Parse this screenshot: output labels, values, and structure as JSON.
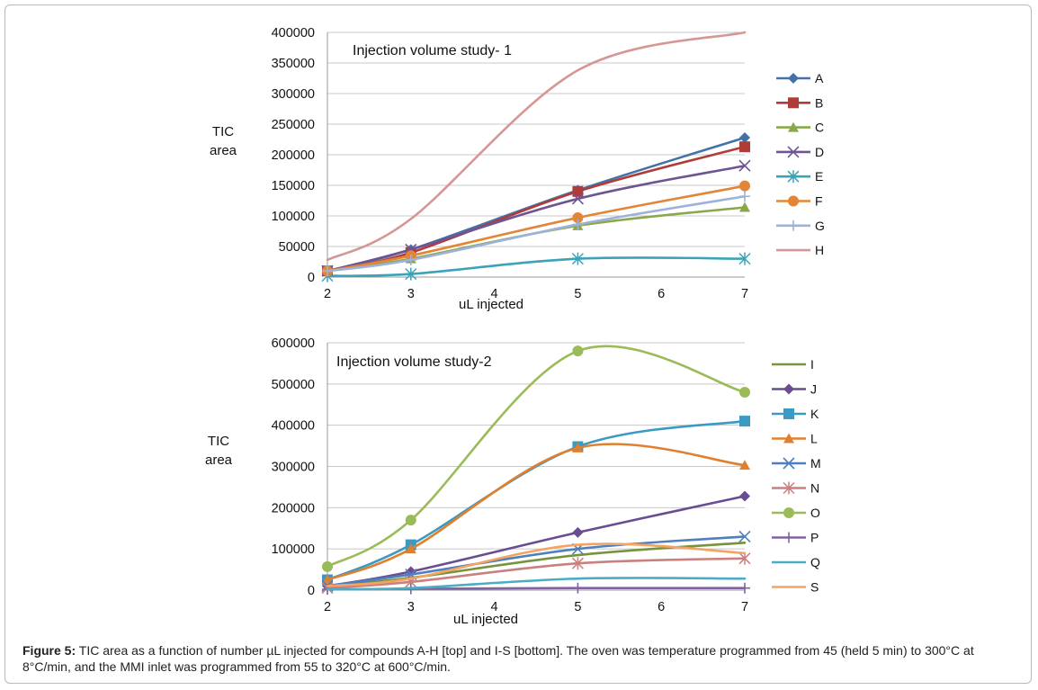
{
  "caption": {
    "label": "Figure 5:",
    "text": "TIC area as a function of number µL injected for compounds A-H [top] and I-S [bottom]. The oven was temperature programmed from 45 (held 5 min) to 300°C at 8°C/min, and the MMI inlet was programmed from 55 to 320°C at 600°C/min."
  },
  "chart_data": [
    {
      "type": "line",
      "title": "Injection volume  study- 1",
      "xlabel": "uL injected",
      "ylabel": "TIC area",
      "xlim": [
        2,
        7
      ],
      "ylim": [
        0,
        400000
      ],
      "xticks": [
        "2",
        "3",
        "4",
        "5",
        "6",
        "7"
      ],
      "yticks": [
        "0",
        "50000",
        "100000",
        "150000",
        "200000",
        "250000",
        "300000",
        "350000",
        "400000"
      ],
      "grid": "horizontal",
      "legend_position": "right",
      "x": [
        2,
        3,
        5,
        7
      ],
      "series": [
        {
          "name": "A",
          "marker": "diamond",
          "color": "#4472a8",
          "values": [
            10000,
            45000,
            142000,
            228000
          ]
        },
        {
          "name": "B",
          "marker": "square",
          "color": "#b03c3a",
          "values": [
            10000,
            40000,
            140000,
            213000
          ]
        },
        {
          "name": "C",
          "marker": "triangle",
          "color": "#8aa84a",
          "values": [
            10000,
            30000,
            84000,
            114000
          ]
        },
        {
          "name": "D",
          "marker": "x",
          "color": "#6f5494",
          "values": [
            10000,
            45000,
            128000,
            182000
          ]
        },
        {
          "name": "E",
          "marker": "star",
          "color": "#3ba2b8",
          "values": [
            2000,
            5000,
            30000,
            30000
          ]
        },
        {
          "name": "F",
          "marker": "circle",
          "color": "#e38537",
          "values": [
            10000,
            35000,
            97000,
            149000
          ]
        },
        {
          "name": "G",
          "marker": "plus",
          "color": "#9db1d9",
          "values": [
            10000,
            28000,
            86000,
            132000
          ]
        },
        {
          "name": "H",
          "marker": "none",
          "color": "#d69695",
          "values": [
            28000,
            95000,
            338000,
            400000
          ]
        }
      ]
    },
    {
      "type": "line",
      "title": "Injection volume  study-2",
      "xlabel": "uL injected",
      "ylabel": "TIC area",
      "xlim": [
        2,
        7
      ],
      "ylim": [
        0,
        600000
      ],
      "xticks": [
        "2",
        "3",
        "4",
        "5",
        "6",
        "7"
      ],
      "yticks": [
        "0",
        "100000",
        "200000",
        "300000",
        "400000",
        "500000",
        "600000"
      ],
      "grid": "horizontal",
      "legend_position": "right",
      "x": [
        2,
        3,
        5,
        7
      ],
      "series": [
        {
          "name": "I",
          "marker": "none",
          "color": "#77933c",
          "values": [
            10000,
            30000,
            85000,
            115000
          ]
        },
        {
          "name": "J",
          "marker": "diamond",
          "color": "#6a4c93",
          "values": [
            10000,
            45000,
            140000,
            228000
          ]
        },
        {
          "name": "K",
          "marker": "square",
          "color": "#3b9ac4",
          "values": [
            25000,
            110000,
            348000,
            410000
          ]
        },
        {
          "name": "L",
          "marker": "triangle",
          "color": "#e0802f",
          "values": [
            25000,
            100000,
            345000,
            303000
          ]
        },
        {
          "name": "M",
          "marker": "x",
          "color": "#4f7fbf",
          "values": [
            10000,
            38000,
            100000,
            130000
          ]
        },
        {
          "name": "N",
          "marker": "star",
          "color": "#c9807e",
          "values": [
            5000,
            20000,
            65000,
            77000
          ]
        },
        {
          "name": "O",
          "marker": "circle",
          "color": "#9bbb59",
          "values": [
            57000,
            170000,
            580000,
            480000
          ]
        },
        {
          "name": "P",
          "marker": "plus",
          "color": "#8064a2",
          "values": [
            2000,
            3000,
            5000,
            5000
          ]
        },
        {
          "name": "Q",
          "marker": "none",
          "color": "#4bacc6",
          "values": [
            2000,
            5000,
            28000,
            28000
          ]
        },
        {
          "name": "S",
          "marker": "none",
          "color": "#f4a460",
          "values": [
            10000,
            28000,
            110000,
            90000
          ]
        }
      ]
    }
  ]
}
